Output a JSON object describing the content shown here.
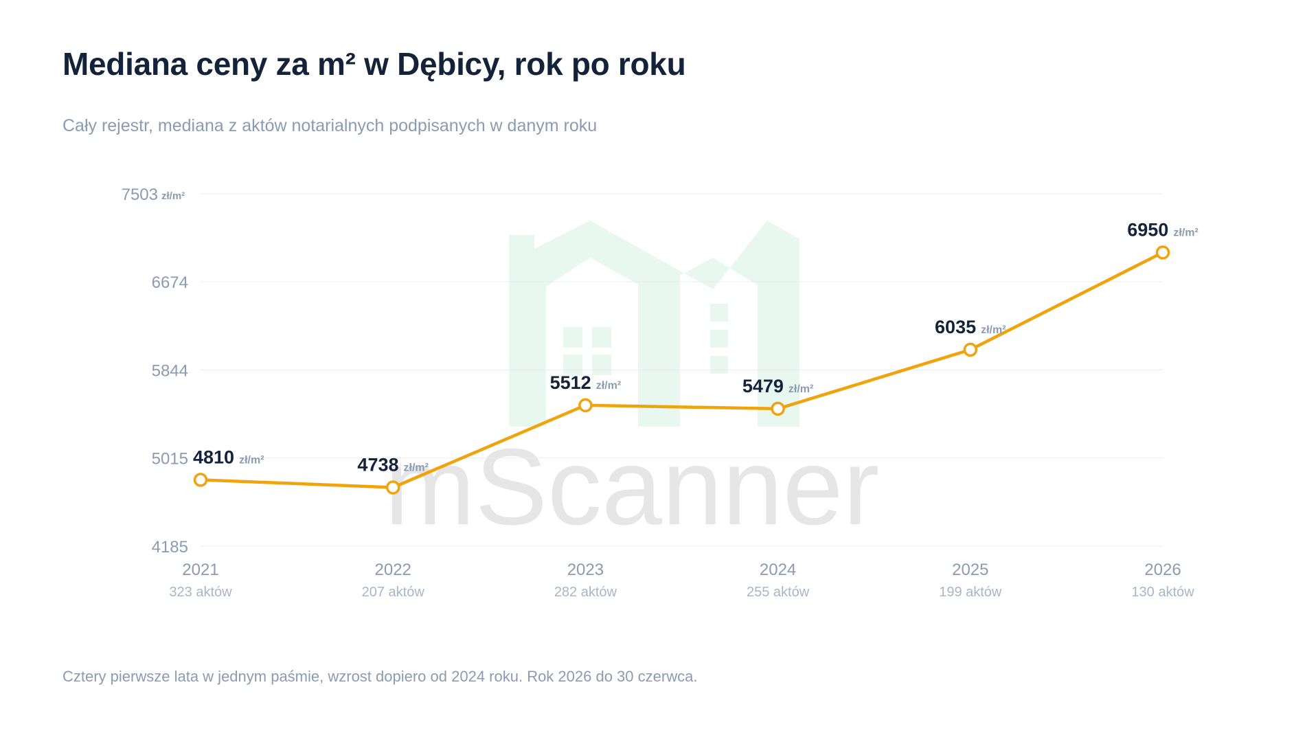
{
  "title": "Mediana ceny za m² w Dębicy, rok po roku",
  "subtitle": "Cały rejestr, mediana z aktów notarialnych podpisanych w danym roku",
  "footnote": "Cztery pierwsze lata w jednym paśmie, wzrost dopiero od 2024 roku. Rok 2026 do 30 czerwca.",
  "watermark": {
    "text": "mScanner",
    "logo_color": "#e8f7ef",
    "text_color": "#e6e6e6"
  },
  "chart_data": {
    "type": "line",
    "x": [
      "2021",
      "2022",
      "2023",
      "2024",
      "2025",
      "2026"
    ],
    "x_sublabels": [
      "323 aktów",
      "207 aktów",
      "282 aktów",
      "255 aktów",
      "199 aktów",
      "130 aktów"
    ],
    "series": [
      {
        "values": [
          4810,
          4738,
          5512,
          5479,
          6035,
          6950
        ],
        "color": "#f0a30a"
      }
    ],
    "value_unit": "zł/m²",
    "y_ticks": [
      4185,
      5015,
      5844,
      6674,
      7503
    ],
    "y_top_unit": "zł/m²",
    "ylim": [
      4185,
      7503
    ],
    "grid": true,
    "legend": "none"
  }
}
